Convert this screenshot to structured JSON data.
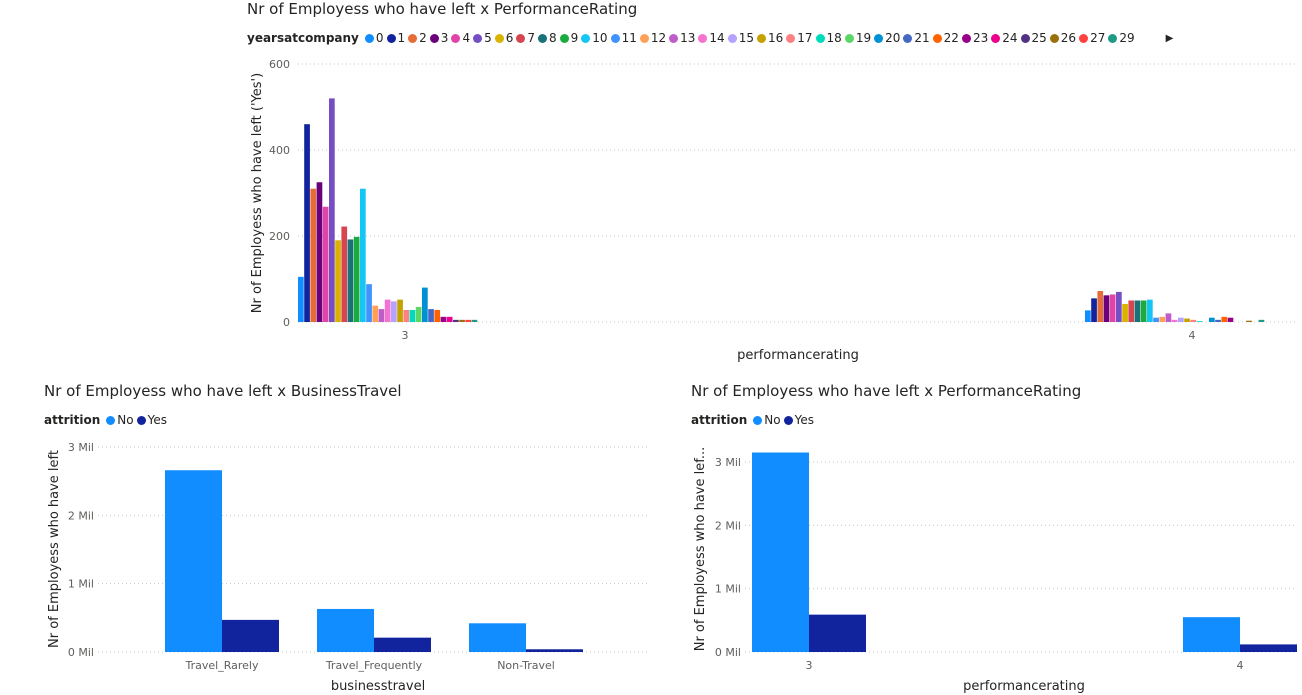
{
  "colors": {
    "no": "#118DFF",
    "yes": "#12239E",
    "grid": "#C8C6C4",
    "tick": "#605E5C",
    "axis_title": "#252423"
  },
  "years_palette": [
    "#118DFF",
    "#12239E",
    "#E66C37",
    "#6B007B",
    "#E044A7",
    "#744EC2",
    "#D9B300",
    "#D64550",
    "#197278",
    "#1AAB40",
    "#15C6F4",
    "#4092FF",
    "#FFA058",
    "#BE5DC9",
    "#F472D0",
    "#B5A1FF",
    "#C4A200",
    "#FF8080",
    "#00DBBC",
    "#5BD667",
    "#0091D5",
    "#4668C5",
    "#FF6300",
    "#99008A",
    "#EC008C",
    "#533285",
    "#99700A",
    "#FF4141",
    "#1F9A85"
  ],
  "chart_data": [
    {
      "type": "bar",
      "title": "Nr of Employess who have left x PerformanceRating",
      "xlabel": "performancerating",
      "ylabel": "Nr of Employess who have left ('Yes')",
      "legend_title": "yearsatcompany",
      "legend_position": "top-left",
      "categories": [
        "3",
        "4"
      ],
      "series_names": [
        "0",
        "1",
        "2",
        "3",
        "4",
        "5",
        "6",
        "7",
        "8",
        "9",
        "10",
        "11",
        "12",
        "13",
        "14",
        "15",
        "16",
        "17",
        "18",
        "19",
        "20",
        "21",
        "22",
        "23",
        "24",
        "25",
        "26",
        "27",
        "29"
      ],
      "groups": [
        [
          105,
          460,
          310,
          325,
          268,
          520,
          190,
          222,
          192,
          198,
          310,
          88,
          38,
          30,
          52,
          48,
          52,
          28,
          28,
          35,
          80,
          30,
          28,
          12,
          12,
          5,
          5,
          5,
          5
        ],
        [
          27,
          55,
          72,
          62,
          64,
          70,
          42,
          50,
          50,
          50,
          52,
          10,
          12,
          20,
          5,
          10,
          8,
          5,
          2,
          0,
          10,
          5,
          12,
          10,
          0,
          0,
          3,
          0,
          5
        ]
      ],
      "yticks": [
        0,
        200,
        400,
        600
      ],
      "ylim": [
        0,
        600
      ],
      "grid": true
    },
    {
      "type": "bar",
      "title": "Nr of Employess who have left x BusinessTravel",
      "xlabel": "businesstravel",
      "ylabel": "Nr of Employess who have left",
      "legend_title": "attrition",
      "legend_position": "top-left",
      "categories": [
        "Travel_Rarely",
        "Travel_Frequently",
        "Non-Travel"
      ],
      "series": [
        {
          "name": "No",
          "values": [
            2.66,
            0.63,
            0.42
          ]
        },
        {
          "name": "Yes",
          "values": [
            0.47,
            0.21,
            0.04
          ]
        }
      ],
      "yticks": [
        "0 Mil",
        "1 Mil",
        "2 Mil",
        "3 Mil"
      ],
      "ylim": [
        0,
        3
      ],
      "grid": true
    },
    {
      "type": "bar",
      "title": "Nr of Employess who have left x PerformanceRating",
      "xlabel": "performancerating",
      "ylabel": "Nr of Employess who have lef...",
      "legend_title": "attrition",
      "legend_position": "top-left",
      "categories": [
        "3",
        "4"
      ],
      "series": [
        {
          "name": "No",
          "values": [
            3.15,
            0.55
          ]
        },
        {
          "name": "Yes",
          "values": [
            0.59,
            0.12
          ]
        }
      ],
      "yticks": [
        "0 Mil",
        "1 Mil",
        "2 Mil",
        "3 Mil"
      ],
      "ylim": [
        0,
        3.3
      ],
      "grid": true
    }
  ]
}
